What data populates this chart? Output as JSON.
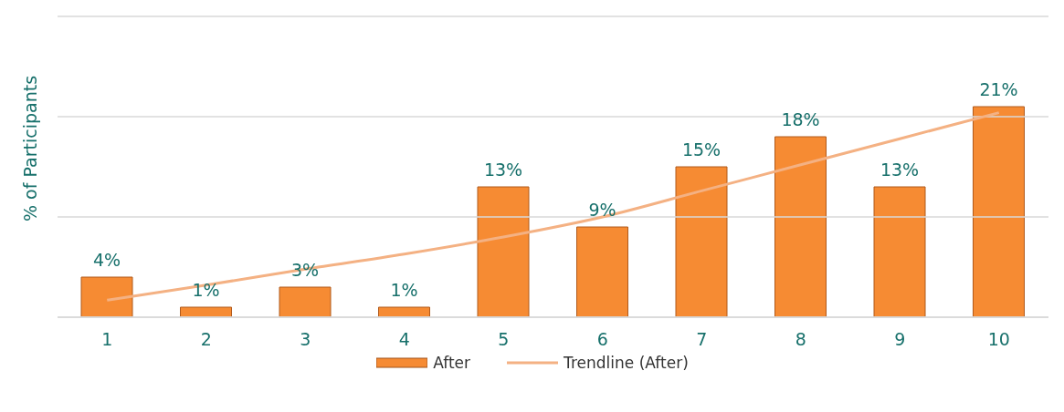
{
  "chart_data": {
    "type": "bar",
    "ylabel": "% of Participants",
    "categories": [
      "1",
      "2",
      "3",
      "4",
      "5",
      "6",
      "7",
      "8",
      "9",
      "10"
    ],
    "series": [
      {
        "name": "After",
        "color": "#f68b33",
        "values": [
          4,
          1,
          3,
          1,
          13,
          9,
          15,
          18,
          13,
          21
        ],
        "value_labels": [
          "4%",
          "1%",
          "3%",
          "1%",
          "13%",
          "9%",
          "15%",
          "18%",
          "13%",
          "21%"
        ]
      },
      {
        "name": "Trendline (After)",
        "type": "line",
        "color": "#f4b183",
        "x": [
          "1",
          "2",
          "3",
          "4",
          "5",
          "6",
          "7",
          "8",
          "9",
          "10"
        ],
        "values": [
          1.7,
          3.2,
          4.8,
          6.3,
          8.0,
          10.0,
          12.6,
          15.2,
          17.8,
          20.4
        ]
      }
    ],
    "ylim": [
      0,
      30
    ],
    "yticks": [
      {
        "value": 0,
        "label": null
      },
      {
        "value": 10,
        "label": null
      },
      {
        "value": 20,
        "label": null
      },
      {
        "value": 30,
        "label": null
      }
    ],
    "tick_labels": "x",
    "grid": "y",
    "legend": "bottom",
    "marker": "none",
    "line_style": "solid"
  }
}
